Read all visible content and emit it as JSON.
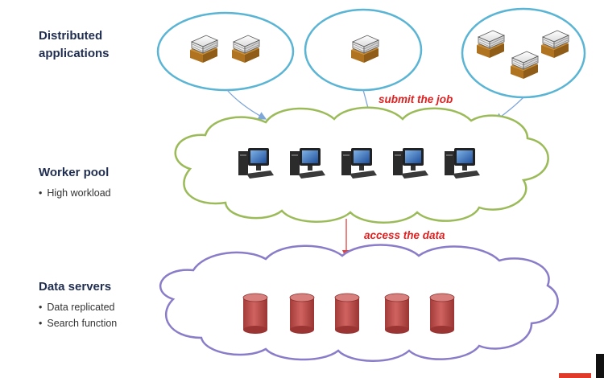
{
  "sections": {
    "distributed": {
      "heading": "Distributed\napplications"
    },
    "worker": {
      "heading": "Worker pool",
      "bullets": [
        "High workload"
      ]
    },
    "data": {
      "heading": "Data servers",
      "bullets": [
        "Data replicated",
        "Search function"
      ]
    }
  },
  "arrows": {
    "submit": "submit the job",
    "access": "access the data"
  },
  "colors": {
    "heading": "#1f2d50",
    "app_ellipse_stroke": "#5ab4d4",
    "worker_cloud_stroke": "#9bbb59",
    "data_cloud_stroke": "#8a7cc8",
    "arrow_blue": "#7fa6d8",
    "arrow_red": "#e04040",
    "label_red": "#e02020",
    "cylinder": "#c0504d"
  },
  "icons": {
    "application": "paper-stack-icon",
    "worker": "computer-workstation-icon",
    "server": "database-cylinder-icon"
  }
}
